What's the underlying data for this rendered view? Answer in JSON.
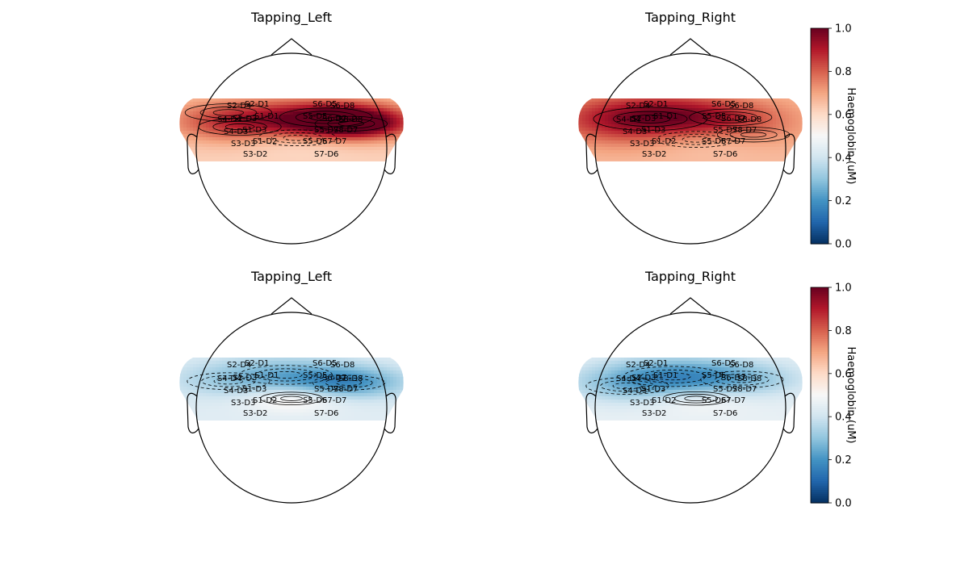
{
  "chart_data": {
    "type": "heatmap",
    "colormap": "RdBu_r",
    "colorbar": {
      "label": "Haemoglobin (uM)",
      "range": [
        0.0,
        1.0
      ],
      "ticks": [
        "0.0",
        "0.2",
        "0.4",
        "0.6",
        "0.8",
        "1.0"
      ]
    },
    "sensor_labels": [
      "S2-D4",
      "S2-D1",
      "S4-D4",
      "S2-D3",
      "S1-D1",
      "S4-D3",
      "S1-D3",
      "S3-D3",
      "S1-D2",
      "S3-D2",
      "S6-D5",
      "S6-D8",
      "S5-D5",
      "S6-D7",
      "S8-D8",
      "S5-D7",
      "S8-D7",
      "S5-D6",
      "S7-D7",
      "S7-D6"
    ],
    "panels": [
      {
        "title": "Tapping_Left",
        "row": 1,
        "col": 1,
        "colorbar": false,
        "blobs": [
          {
            "x": -0.55,
            "y": 0.55,
            "value": 0.72,
            "spread": 0.42
          },
          {
            "x": 0.3,
            "y": 0.4,
            "value": 0.88,
            "spread": 0.45
          },
          {
            "x": 0.52,
            "y": 0.2,
            "value": 1.0,
            "spread": 0.35
          },
          {
            "x": 0.05,
            "y": -0.25,
            "value": 0.55,
            "spread": 0.38
          },
          {
            "x": -0.45,
            "y": 0.1,
            "value": 0.8,
            "spread": 0.4
          }
        ],
        "base": 0.62
      },
      {
        "title": "Tapping_Right",
        "row": 1,
        "col": 2,
        "colorbar": true,
        "blobs": [
          {
            "x": -0.35,
            "y": 0.35,
            "value": 1.0,
            "spread": 0.55
          },
          {
            "x": 0.35,
            "y": 0.4,
            "value": 0.75,
            "spread": 0.4
          },
          {
            "x": 0.05,
            "y": -0.3,
            "value": 0.58,
            "spread": 0.38
          },
          {
            "x": 0.55,
            "y": -0.15,
            "value": 0.7,
            "spread": 0.35
          }
        ],
        "base": 0.66
      },
      {
        "title": "Tapping_Left",
        "row": 2,
        "col": 1,
        "colorbar": false,
        "blobs": [
          {
            "x": -0.05,
            "y": 0.45,
            "value": 0.3,
            "spread": 0.45
          },
          {
            "x": 0.5,
            "y": 0.2,
            "value": 0.22,
            "spread": 0.35
          },
          {
            "x": -0.55,
            "y": 0.25,
            "value": 0.36,
            "spread": 0.4
          },
          {
            "x": 0.0,
            "y": -0.3,
            "value": 0.56,
            "spread": 0.3
          }
        ],
        "base": 0.44
      },
      {
        "title": "Tapping_Right",
        "row": 2,
        "col": 2,
        "colorbar": true,
        "blobs": [
          {
            "x": -0.15,
            "y": 0.4,
            "value": 0.24,
            "spread": 0.48
          },
          {
            "x": 0.45,
            "y": 0.3,
            "value": 0.34,
            "spread": 0.4
          },
          {
            "x": 0.05,
            "y": -0.3,
            "value": 0.54,
            "spread": 0.32
          },
          {
            "x": -0.55,
            "y": 0.1,
            "value": 0.36,
            "spread": 0.4
          }
        ],
        "base": 0.46
      }
    ]
  }
}
